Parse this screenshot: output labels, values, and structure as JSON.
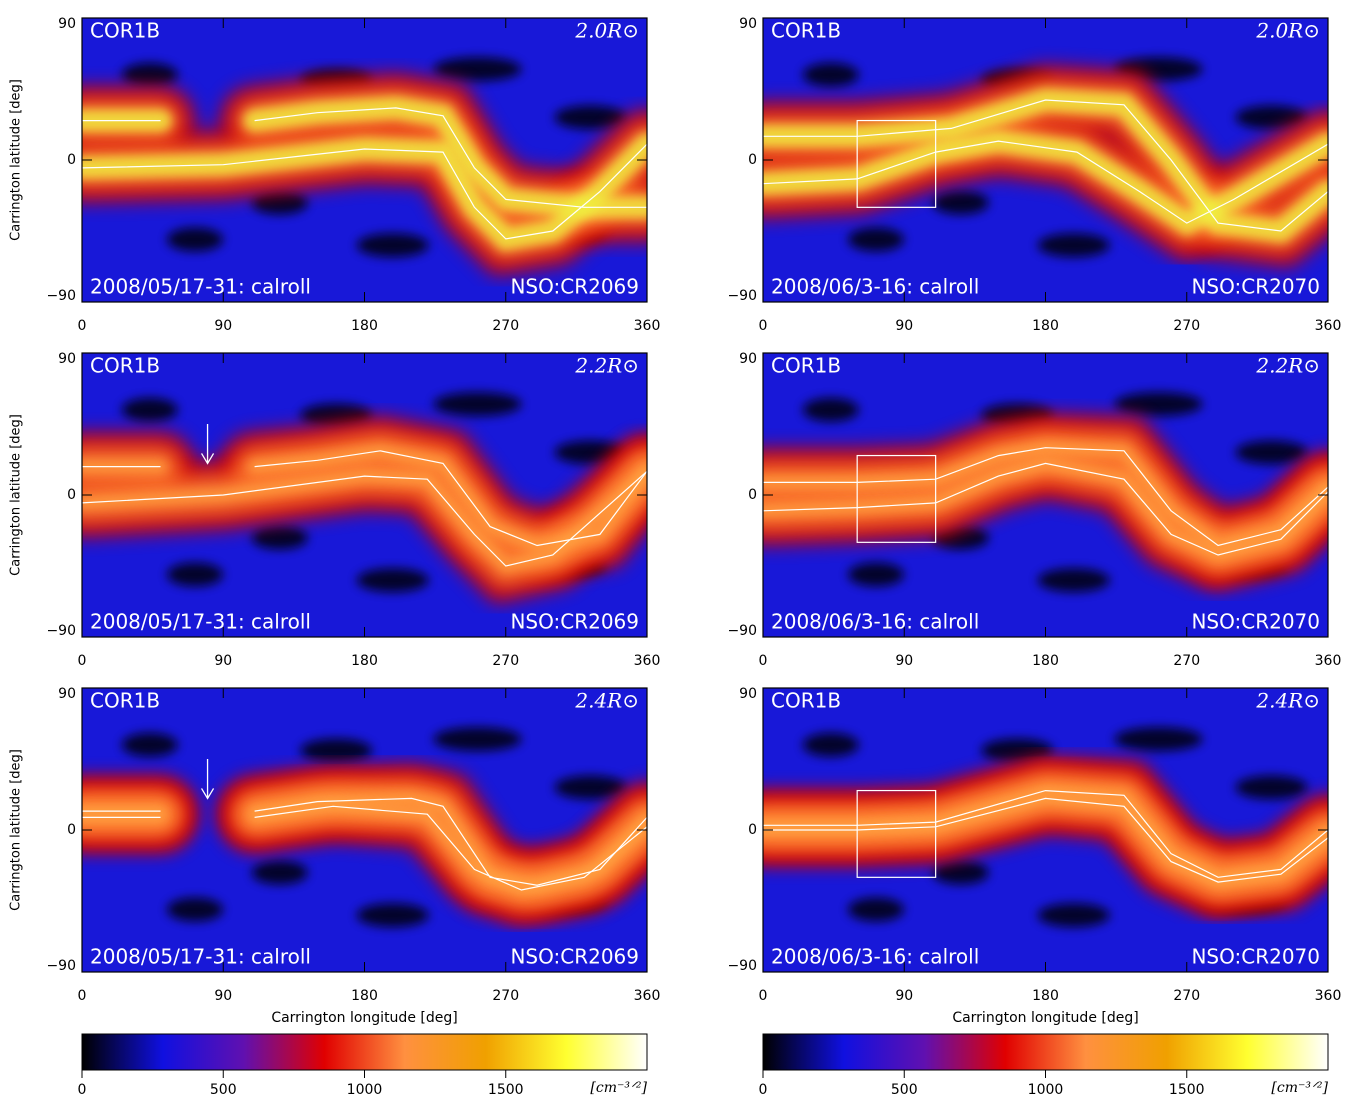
{
  "chart_data": [
    {
      "type": "heatmap",
      "instrument": "COR1B",
      "height": "2.0R⊙",
      "date": "2008/05/17-31: calroll",
      "source": "NSO:CR2069",
      "ylabel": "Carrington latitude [deg]",
      "xlim": [
        0,
        360
      ],
      "xticks": [
        0,
        90,
        180,
        270,
        360
      ],
      "ylim": [
        -90,
        90
      ],
      "yticks": [
        {
          "value": -90,
          "label": "−90"
        },
        0,
        90
      ],
      "lines": [
        {
          "x": [
            0,
            50,
            null,
            110,
            150,
            200,
            230,
            250,
            270,
            320,
            360
          ],
          "values": [
            25,
            25,
            null,
            25,
            30,
            33,
            28,
            -5,
            -25,
            -30,
            -30
          ]
        },
        {
          "x": [
            0,
            90,
            180,
            230,
            250,
            270,
            300,
            330,
            360
          ],
          "values": [
            -5,
            -3,
            7,
            5,
            -30,
            -50,
            -45,
            -20,
            10
          ]
        }
      ]
    },
    {
      "type": "heatmap",
      "instrument": "COR1B",
      "height": "2.0R⊙",
      "date": "2008/06/3-16: calroll",
      "source": "NSO:CR2070",
      "xlim": [
        0,
        360
      ],
      "xticks": [
        0,
        90,
        180,
        270,
        360
      ],
      "ylim": [
        -90,
        90
      ],
      "yticks": [
        {
          "value": -90,
          "label": "−90"
        },
        0,
        90
      ],
      "lines": [
        {
          "x": [
            0,
            60,
            120,
            180,
            230,
            260,
            290,
            330,
            360
          ],
          "values": [
            15,
            15,
            20,
            38,
            35,
            0,
            -40,
            -45,
            -20
          ]
        },
        {
          "x": [
            0,
            60,
            110,
            150,
            200,
            240,
            270,
            300,
            360
          ],
          "values": [
            -15,
            -12,
            5,
            12,
            5,
            -20,
            -40,
            -25,
            10
          ]
        }
      ],
      "box": {
        "x": [
          60,
          110
        ],
        "y": [
          -30,
          25
        ]
      }
    },
    {
      "type": "heatmap",
      "instrument": "COR1B",
      "height": "2.2R⊙",
      "date": "2008/05/17-31: calroll",
      "source": "NSO:CR2069",
      "ylabel": "Carrington latitude [deg]",
      "xlim": [
        0,
        360
      ],
      "xticks": [
        0,
        90,
        180,
        270,
        360
      ],
      "ylim": [
        -90,
        90
      ],
      "yticks": [
        {
          "value": -90,
          "label": "−90"
        },
        0,
        90
      ],
      "lines": [
        {
          "x": [
            0,
            50,
            null,
            110,
            150,
            190,
            230,
            260,
            290,
            330,
            360
          ],
          "values": [
            18,
            18,
            null,
            18,
            22,
            28,
            20,
            -20,
            -32,
            -25,
            15
          ]
        },
        {
          "x": [
            0,
            90,
            180,
            220,
            250,
            270,
            300,
            360
          ],
          "values": [
            -5,
            0,
            12,
            10,
            -25,
            -45,
            -38,
            15
          ]
        }
      ],
      "arrow": {
        "x": 80,
        "y": [
          45,
          20
        ]
      }
    },
    {
      "type": "heatmap",
      "instrument": "COR1B",
      "height": "2.2R⊙",
      "date": "2008/06/3-16: calroll",
      "source": "NSO:CR2070",
      "xlim": [
        0,
        360
      ],
      "xticks": [
        0,
        90,
        180,
        270,
        360
      ],
      "ylim": [
        -90,
        90
      ],
      "yticks": [
        {
          "value": -90,
          "label": "−90"
        },
        0,
        90
      ],
      "lines": [
        {
          "x": [
            0,
            60,
            110,
            150,
            180,
            230,
            260,
            290,
            330,
            360
          ],
          "values": [
            8,
            8,
            10,
            25,
            30,
            28,
            -10,
            -32,
            -22,
            5
          ]
        },
        {
          "x": [
            0,
            60,
            110,
            150,
            180,
            230,
            260,
            290,
            330,
            360
          ],
          "values": [
            -10,
            -8,
            -5,
            12,
            20,
            10,
            -25,
            -38,
            -28,
            2
          ]
        }
      ],
      "box": {
        "x": [
          60,
          110
        ],
        "y": [
          -30,
          25
        ]
      }
    },
    {
      "type": "heatmap",
      "instrument": "COR1B",
      "height": "2.4R⊙",
      "date": "2008/05/17-31: calroll",
      "source": "NSO:CR2069",
      "ylabel": "Carrington latitude [deg]",
      "xlabel": "Carrington longitude [deg]",
      "xlim": [
        0,
        360
      ],
      "xticks": [
        0,
        90,
        180,
        270,
        360
      ],
      "ylim": [
        -90,
        90
      ],
      "yticks": [
        {
          "value": -90,
          "label": "−90"
        },
        0,
        90
      ],
      "lines": [
        {
          "x": [
            0,
            50,
            null,
            110,
            150,
            210,
            230,
            260,
            290,
            330,
            360
          ],
          "values": [
            12,
            12,
            null,
            12,
            18,
            20,
            15,
            -30,
            -35,
            -25,
            8
          ]
        },
        {
          "x": [
            0,
            50,
            null,
            110,
            160,
            220,
            250,
            280,
            320,
            360
          ],
          "values": [
            8,
            8,
            null,
            8,
            15,
            10,
            -25,
            -38,
            -30,
            2
          ]
        }
      ],
      "arrow": {
        "x": 80,
        "y": [
          45,
          20
        ]
      }
    },
    {
      "type": "heatmap",
      "instrument": "COR1B",
      "height": "2.4R⊙",
      "date": "2008/06/3-16: calroll",
      "source": "NSO:CR2070",
      "xlabel": "Carrington longitude [deg]",
      "xlim": [
        0,
        360
      ],
      "xticks": [
        0,
        90,
        180,
        270,
        360
      ],
      "ylim": [
        -90,
        90
      ],
      "yticks": [
        {
          "value": -90,
          "label": "−90"
        },
        0,
        90
      ],
      "lines": [
        {
          "x": [
            0,
            60,
            110,
            180,
            230,
            260,
            290,
            330,
            360
          ],
          "values": [
            3,
            3,
            5,
            25,
            22,
            -15,
            -30,
            -25,
            0
          ]
        },
        {
          "x": [
            0,
            60,
            110,
            180,
            230,
            260,
            290,
            330,
            360
          ],
          "values": [
            0,
            0,
            2,
            20,
            15,
            -20,
            -33,
            -28,
            -5
          ]
        }
      ],
      "box": {
        "x": [
          60,
          110
        ],
        "y": [
          -30,
          25
        ]
      }
    },
    {
      "type": "colorbar",
      "xlim": [
        0,
        2000
      ],
      "xticks": [
        0,
        500,
        1000,
        1500
      ],
      "unit": "[cm⁻³ᐟ²]",
      "colors": [
        "#000000",
        "#1010e0",
        "#6010b0",
        "#e00000",
        "#ff9040",
        "#f0a000",
        "#ffff30",
        "#ffffff"
      ]
    },
    {
      "type": "colorbar",
      "xlim": [
        0,
        2000
      ],
      "xticks": [
        0,
        500,
        1000,
        1500
      ],
      "unit": "[cm⁻³ᐟ²]",
      "colors": [
        "#000000",
        "#1010e0",
        "#6010b0",
        "#e00000",
        "#ff9040",
        "#f0a000",
        "#ffff30",
        "#ffffff"
      ]
    }
  ]
}
